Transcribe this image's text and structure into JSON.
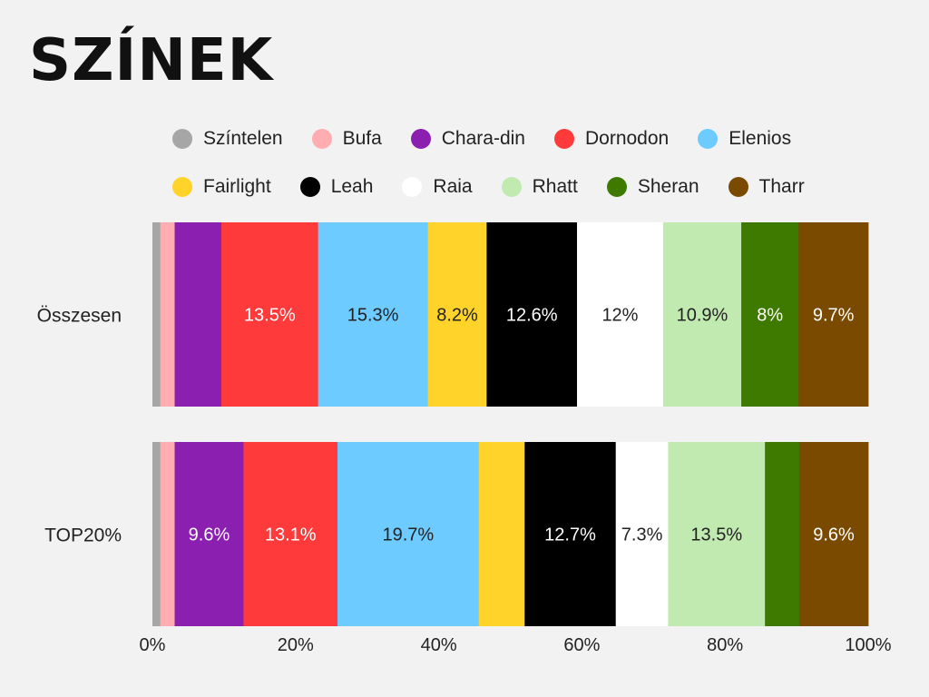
{
  "title": "SZÍNEK",
  "chart_data": {
    "type": "bar",
    "orientation": "horizontal",
    "stacked": true,
    "normalized": true,
    "title": "SZÍNEK",
    "categories": [
      "Összesen",
      "TOP20%"
    ],
    "xlim": [
      0,
      100
    ],
    "x_ticks": [
      "0%",
      "20%",
      "40%",
      "60%",
      "80%",
      "100%"
    ],
    "legend_position": "top",
    "grid": false,
    "series": [
      {
        "name": "Színtelen",
        "color": "#a6a6a6",
        "values": [
          1.1,
          1.1
        ],
        "labels": [
          "",
          ""
        ],
        "label_color": "#222222"
      },
      {
        "name": "Bufa",
        "color": "#ffadb0",
        "values": [
          2.0,
          2.0
        ],
        "labels": [
          "",
          ""
        ],
        "label_color": "#222222"
      },
      {
        "name": "Chara-din",
        "color": "#8b1fb0",
        "values": [
          6.5,
          9.6
        ],
        "labels": [
          "",
          "9.6%"
        ],
        "label_color": "#ffffff"
      },
      {
        "name": "Dornodon",
        "color": "#ff3a3a",
        "values": [
          13.5,
          13.1
        ],
        "labels": [
          "13.5%",
          "13.1%"
        ],
        "label_color": "#ffffff"
      },
      {
        "name": "Elenios",
        "color": "#6ecbff",
        "values": [
          15.3,
          19.7
        ],
        "labels": [
          "15.3%",
          "19.7%"
        ],
        "label_color": "#222222"
      },
      {
        "name": "Fairlight",
        "color": "#ffd32a",
        "values": [
          8.2,
          6.4
        ],
        "labels": [
          "8.2%",
          ""
        ],
        "label_color": "#222222"
      },
      {
        "name": "Leah",
        "color": "#000000",
        "values": [
          12.6,
          12.7
        ],
        "labels": [
          "12.6%",
          "12.7%"
        ],
        "label_color": "#ffffff"
      },
      {
        "name": "Raia",
        "color": "#ffffff",
        "values": [
          12.0,
          7.3
        ],
        "labels": [
          "12%",
          "7.3%"
        ],
        "label_color": "#222222"
      },
      {
        "name": "Rhatt",
        "color": "#c0eab0",
        "values": [
          10.9,
          13.5
        ],
        "labels": [
          "10.9%",
          "13.5%"
        ],
        "label_color": "#222222"
      },
      {
        "name": "Sheran",
        "color": "#3e7a00",
        "values": [
          8.0,
          4.8
        ],
        "labels": [
          "8%",
          ""
        ],
        "label_color": "#ffffff"
      },
      {
        "name": "Tharr",
        "color": "#7a4a00",
        "values": [
          9.7,
          9.6
        ],
        "labels": [
          "9.7%",
          "9.6%"
        ],
        "label_color": "#ffffff"
      }
    ]
  }
}
